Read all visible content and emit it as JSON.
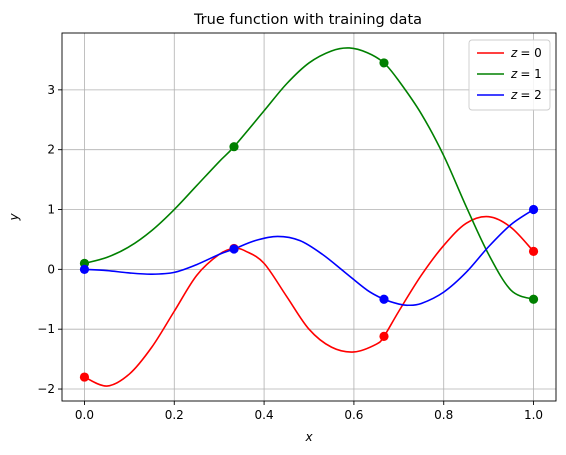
{
  "chart_data": {
    "type": "line",
    "title": "True function with training data",
    "xlabel": "x",
    "ylabel": "y",
    "xlim": [
      -0.05,
      1.05
    ],
    "ylim": [
      -2.2,
      3.95
    ],
    "xticks": [
      0.0,
      0.2,
      0.4,
      0.6,
      0.8,
      1.0
    ],
    "xtick_labels": [
      "0.0",
      "0.2",
      "0.4",
      "0.6",
      "0.8",
      "1.0"
    ],
    "yticks": [
      -2,
      -1,
      0,
      1,
      2,
      3
    ],
    "ytick_labels": [
      "−2",
      "−1",
      "0",
      "1",
      "2",
      "3"
    ],
    "grid": true,
    "legend_position": "top-right",
    "series": [
      {
        "name": "z = 0",
        "legend_prefix": "z",
        "legend_suffix": "= 0",
        "color": "#ff0000",
        "curve": {
          "x": [
            0.0,
            0.05,
            0.1,
            0.15,
            0.2,
            0.25,
            0.3,
            0.333,
            0.36,
            0.4,
            0.45,
            0.5,
            0.55,
            0.6,
            0.65,
            0.667,
            0.7,
            0.75,
            0.8,
            0.85,
            0.9,
            0.95,
            1.0
          ],
          "y": [
            -1.8,
            -1.95,
            -1.75,
            -1.3,
            -0.7,
            -0.1,
            0.25,
            0.35,
            0.3,
            0.1,
            -0.45,
            -1.0,
            -1.3,
            -1.38,
            -1.25,
            -1.12,
            -0.7,
            -0.1,
            0.4,
            0.77,
            0.88,
            0.7,
            0.3
          ]
        },
        "points": {
          "x": [
            0.0,
            0.333,
            0.667,
            1.0
          ],
          "y": [
            -1.8,
            0.35,
            -1.12,
            0.3
          ]
        }
      },
      {
        "name": "z = 1",
        "legend_prefix": "z",
        "legend_suffix": "= 1",
        "color": "#008000",
        "curve": {
          "x": [
            0.0,
            0.05,
            0.1,
            0.15,
            0.2,
            0.25,
            0.3,
            0.333,
            0.4,
            0.45,
            0.5,
            0.55,
            0.59,
            0.63,
            0.667,
            0.7,
            0.75,
            0.8,
            0.85,
            0.9,
            0.95,
            1.0
          ],
          "y": [
            0.1,
            0.2,
            0.38,
            0.65,
            1.0,
            1.4,
            1.8,
            2.05,
            2.65,
            3.1,
            3.45,
            3.65,
            3.7,
            3.62,
            3.45,
            3.15,
            2.6,
            1.9,
            1.05,
            0.25,
            -0.35,
            -0.5
          ]
        },
        "points": {
          "x": [
            0.0,
            0.333,
            0.667,
            1.0
          ],
          "y": [
            0.1,
            2.05,
            3.45,
            -0.5
          ]
        }
      },
      {
        "name": "z = 2",
        "legend_prefix": "z",
        "legend_suffix": "= 2",
        "color": "#0000ff",
        "curve": {
          "x": [
            0.0,
            0.05,
            0.1,
            0.15,
            0.2,
            0.25,
            0.3,
            0.333,
            0.38,
            0.43,
            0.48,
            0.53,
            0.58,
            0.63,
            0.667,
            0.7,
            0.72,
            0.75,
            0.8,
            0.85,
            0.9,
            0.95,
            1.0
          ],
          "y": [
            0.0,
            -0.02,
            -0.06,
            -0.08,
            -0.05,
            0.08,
            0.25,
            0.34,
            0.48,
            0.55,
            0.48,
            0.25,
            -0.05,
            -0.35,
            -0.5,
            -0.58,
            -0.6,
            -0.57,
            -0.38,
            -0.05,
            0.38,
            0.75,
            1.0
          ]
        },
        "points": {
          "x": [
            0.0,
            0.333,
            0.667,
            1.0
          ],
          "y": [
            0.0,
            0.34,
            -0.5,
            1.0
          ]
        }
      }
    ]
  }
}
